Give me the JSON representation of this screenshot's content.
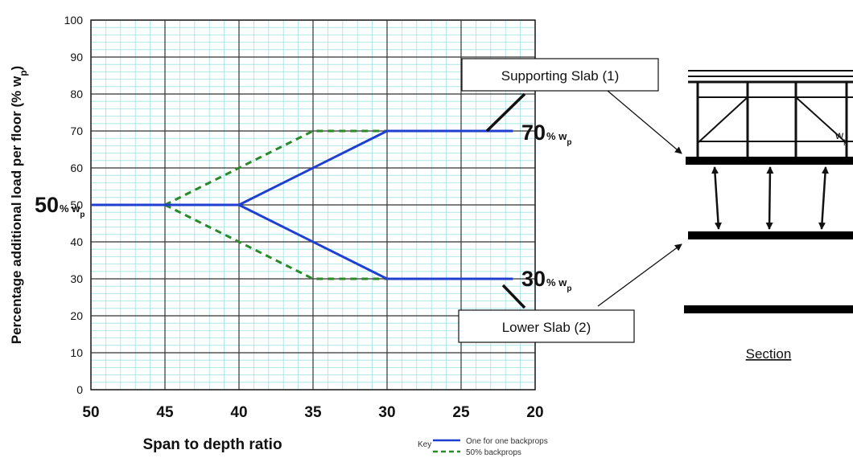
{
  "chart_data": {
    "type": "line",
    "xlabel": "Span to depth ratio",
    "ylabel": "Percentage additional load per floor (% w",
    "ylabel_sub": "p",
    "ylabel_close": ")",
    "x_ticks": [
      50,
      45,
      40,
      35,
      30,
      25,
      20
    ],
    "y_ticks": [
      0,
      10,
      20,
      30,
      40,
      50,
      60,
      70,
      80,
      90,
      100
    ],
    "xlim": [
      50,
      20
    ],
    "ylim": [
      0,
      100
    ],
    "x_reversed": true,
    "grid": true,
    "series": [
      {
        "name": "One for one backprops",
        "color": "#1f3fd0",
        "dash": "solid",
        "lines": [
          [
            [
              50,
              50
            ],
            [
              40,
              50
            ],
            [
              30,
              70
            ],
            [
              21.5,
              70
            ]
          ],
          [
            [
              40,
              50
            ],
            [
              30,
              30
            ],
            [
              21.5,
              30
            ]
          ]
        ]
      },
      {
        "name": "50% backprops",
        "color": "#2a8a2a",
        "dash": "dashed",
        "lines": [
          [
            [
              45,
              50
            ],
            [
              35,
              70
            ],
            [
              30,
              70
            ]
          ],
          [
            [
              45,
              50
            ],
            [
              35,
              30
            ],
            [
              30,
              30
            ]
          ]
        ]
      }
    ],
    "annotations": {
      "left": {
        "big": "50",
        "small": "% w",
        "sub": "p"
      },
      "upper": {
        "big": "70",
        "small": "% w",
        "sub": "p"
      },
      "lower": {
        "big": "30",
        "small": "% w",
        "sub": "p"
      }
    },
    "legend": {
      "title": "Key",
      "placement": "bottom-right",
      "items": [
        "One for one backprops",
        "50% backprops"
      ]
    }
  },
  "diagram": {
    "callout_upper": "Supporting Slab (1)",
    "callout_lower": "Lower Slab (2)",
    "section_label": "Section",
    "wp_label": "w",
    "wp_sub": "p"
  }
}
